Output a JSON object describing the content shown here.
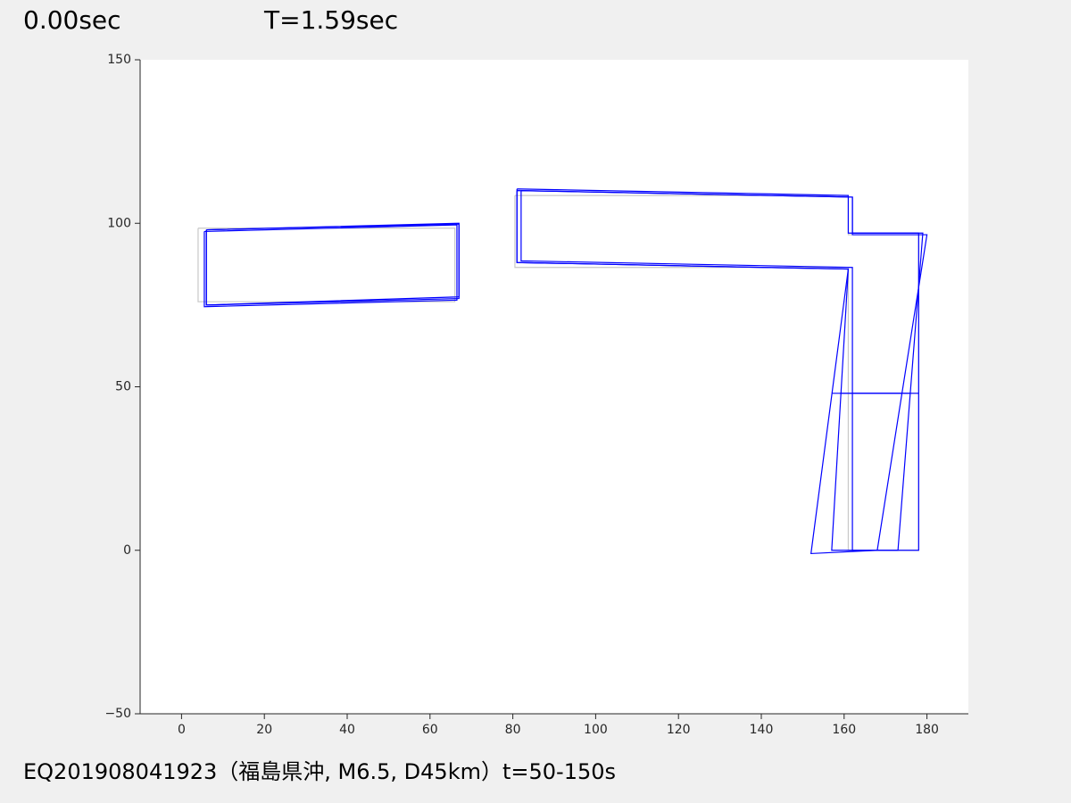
{
  "chart_data": {
    "type": "line",
    "time_text": "0.00sec",
    "period_text": "T=1.59sec",
    "caption": "EQ201908041923（福島県沖, M6.5, D45km）t=50-150s",
    "xlim": [
      -10,
      190
    ],
    "ylim": [
      -50,
      150
    ],
    "xticks": [
      0,
      20,
      40,
      60,
      80,
      100,
      120,
      140,
      160,
      180
    ],
    "yticks": [
      {
        "value": -50,
        "label": "−50"
      },
      0,
      50,
      100,
      150
    ],
    "series": [
      {
        "color": "#c8c8c8",
        "x": [
          4,
          66,
          66,
          4,
          4,
          null,
          80.5,
          161,
          161,
          178,
          178,
          161,
          161,
          80.5,
          80.5,
          null,
          161,
          178
        ],
        "values": [
          98.5,
          98.5,
          76,
          76,
          98.5,
          null,
          108.5,
          108.5,
          96.5,
          96.5,
          0,
          0,
          86.5,
          86.5,
          108.5,
          null,
          48,
          48
        ]
      },
      {
        "color": "#0000ff",
        "x": [
          6,
          67,
          67,
          6,
          6,
          null,
          82,
          162,
          162,
          178,
          178,
          162,
          162,
          82,
          82,
          null,
          162,
          178
        ],
        "values": [
          98,
          100,
          77,
          75,
          98,
          null,
          110,
          108,
          97,
          97,
          0,
          0,
          86.5,
          88.5,
          110,
          null,
          48,
          48
        ]
      },
      {
        "color": "#0000ff",
        "x": [
          5.5,
          66.5,
          66.5,
          5.5,
          5.5,
          null,
          81,
          161,
          161,
          179,
          173,
          157,
          161,
          81,
          81,
          null,
          159,
          176
        ],
        "values": [
          97.5,
          99.5,
          76.5,
          74.5,
          97.5,
          null,
          110.5,
          108.5,
          97,
          97,
          0,
          0,
          86,
          88,
          110.5,
          null,
          48,
          48
        ]
      },
      {
        "color": "#0000ff",
        "x": [
          6,
          67,
          67,
          6,
          6,
          null,
          81,
          162,
          162,
          180,
          168,
          152,
          161,
          81,
          81,
          null,
          157,
          174
        ],
        "values": [
          98,
          99.8,
          77.5,
          75,
          98,
          null,
          110,
          108,
          96.5,
          96.5,
          0,
          -1,
          86,
          88,
          110,
          null,
          48,
          48
        ]
      }
    ]
  }
}
